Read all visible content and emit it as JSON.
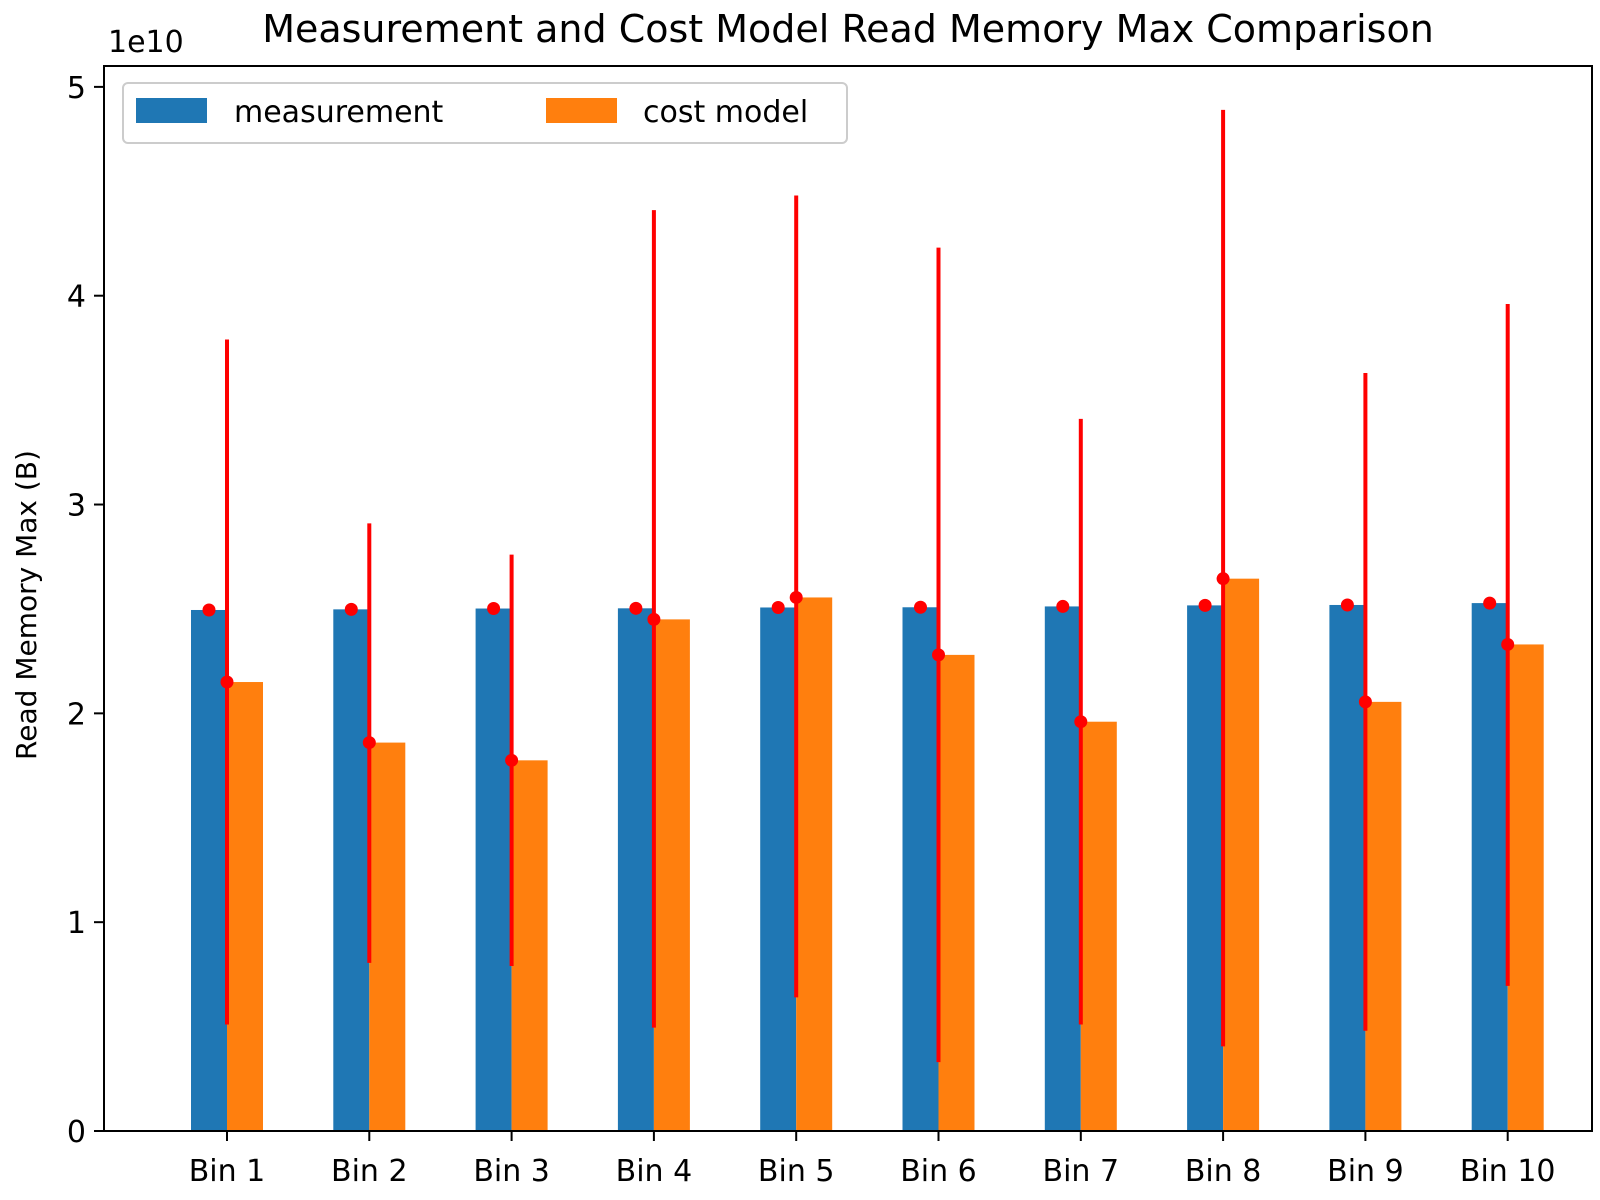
{
  "chart_data": {
    "type": "bar",
    "title": "Measurement and Cost Model Read Memory Max Comparison",
    "ylabel": "Read Memory Max (B)",
    "xlabel": "",
    "offset_label": "1e10",
    "ylim": [
      0,
      5.1
    ],
    "yticks": [
      "0",
      "1",
      "2",
      "3",
      "4",
      "5"
    ],
    "legend_position": "top-left",
    "categories": [
      "Bin 1",
      "Bin 2",
      "Bin 3",
      "Bin 4",
      "Bin 5",
      "Bin 6",
      "Bin 7",
      "Bin 8",
      "Bin 9",
      "Bin 10"
    ],
    "series": [
      {
        "name": "measurement",
        "color": "#1f77b4",
        "values": [
          2.495,
          2.498,
          2.502,
          2.503,
          2.507,
          2.508,
          2.512,
          2.517,
          2.519,
          2.528
        ]
      },
      {
        "name": "cost model",
        "color": "#ff7f0e",
        "values": [
          2.15,
          1.86,
          1.775,
          2.45,
          2.555,
          2.28,
          1.96,
          2.645,
          2.055,
          2.33
        ],
        "error_low": [
          0.51,
          0.805,
          0.79,
          0.495,
          0.64,
          0.33,
          0.51,
          0.405,
          0.48,
          0.695
        ],
        "error_high": [
          3.79,
          2.91,
          2.76,
          4.41,
          4.48,
          4.23,
          3.41,
          4.89,
          3.63,
          3.96
        ]
      }
    ],
    "marker_color": "#ff0000"
  }
}
